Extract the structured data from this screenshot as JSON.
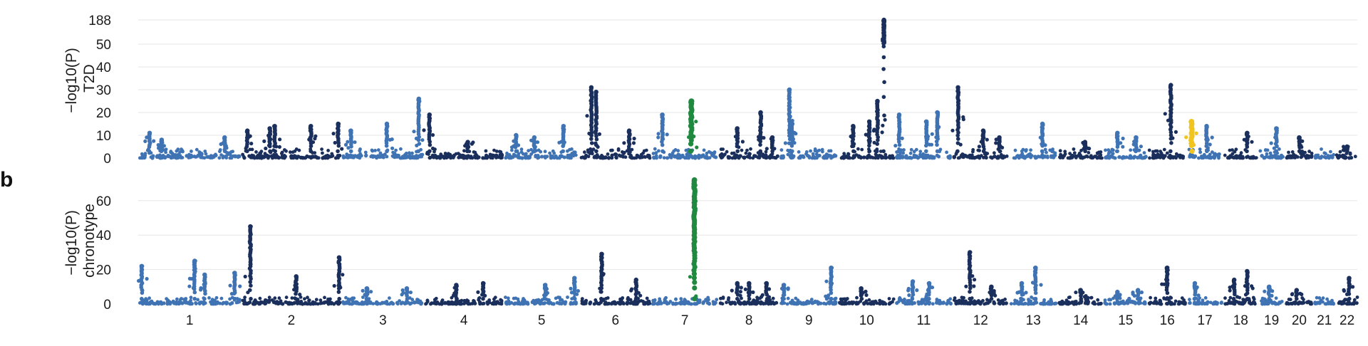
{
  "figure": {
    "panel_b_label": "b"
  },
  "colors": {
    "light": "#3f73b3",
    "dark": "#1a2f5c",
    "green": "#1f8a3f",
    "yellow": "#f2c41f",
    "grid": "#e6e6e6"
  },
  "chart_data": [
    {
      "type": "scatter",
      "plot": "manhattan",
      "ylabel_main": "−log10(P)",
      "ylabel_sub": "T2D",
      "yticks": [
        0,
        10,
        20,
        30,
        40,
        50,
        188
      ],
      "ytick_labels": [
        "0",
        "10",
        "20",
        "30",
        "40",
        "50",
        "188"
      ],
      "ylim": [
        0,
        60
      ],
      "y_axis_break": "values above 50 compressed; top tick labelled 188",
      "chromosomes": [
        "1",
        "2",
        "3",
        "4",
        "5",
        "6",
        "7",
        "8",
        "9",
        "10",
        "11",
        "12",
        "13",
        "14",
        "15",
        "16",
        "17",
        "18",
        "19",
        "20",
        "21",
        "22"
      ],
      "peaks": [
        {
          "chr": "1",
          "pos": 0.1,
          "p": 11
        },
        {
          "chr": "1",
          "pos": 0.22,
          "p": 8
        },
        {
          "chr": "1",
          "pos": 0.85,
          "p": 9
        },
        {
          "chr": "2",
          "pos": 0.05,
          "p": 12
        },
        {
          "chr": "2",
          "pos": 0.28,
          "p": 13
        },
        {
          "chr": "2",
          "pos": 0.33,
          "p": 14
        },
        {
          "chr": "2",
          "pos": 0.7,
          "p": 14
        },
        {
          "chr": "2",
          "pos": 0.98,
          "p": 15
        },
        {
          "chr": "3",
          "pos": 0.1,
          "p": 12
        },
        {
          "chr": "3",
          "pos": 0.55,
          "p": 15
        },
        {
          "chr": "3",
          "pos": 0.95,
          "p": 26
        },
        {
          "chr": "4",
          "pos": 0.05,
          "p": 19
        },
        {
          "chr": "4",
          "pos": 0.55,
          "p": 7
        },
        {
          "chr": "5",
          "pos": 0.15,
          "p": 10
        },
        {
          "chr": "5",
          "pos": 0.4,
          "p": 9
        },
        {
          "chr": "5",
          "pos": 0.8,
          "p": 14
        },
        {
          "chr": "6",
          "pos": 0.15,
          "p": 31
        },
        {
          "chr": "6",
          "pos": 0.22,
          "p": 29
        },
        {
          "chr": "6",
          "pos": 0.7,
          "p": 12
        },
        {
          "chr": "7",
          "pos": 0.15,
          "p": 19
        },
        {
          "chr": "7",
          "pos": 0.6,
          "p": 25,
          "highlight": "green"
        },
        {
          "chr": "8",
          "pos": 0.3,
          "p": 13
        },
        {
          "chr": "8",
          "pos": 0.7,
          "p": 20
        },
        {
          "chr": "8",
          "pos": 0.9,
          "p": 9
        },
        {
          "chr": "9",
          "pos": 0.15,
          "p": 30
        },
        {
          "chr": "9",
          "pos": 0.2,
          "p": 15
        },
        {
          "chr": "10",
          "pos": 0.25,
          "p": 14
        },
        {
          "chr": "10",
          "pos": 0.55,
          "p": 16
        },
        {
          "chr": "10",
          "pos": 0.7,
          "p": 25
        },
        {
          "chr": "10",
          "pos": 0.82,
          "p": 188
        },
        {
          "chr": "11",
          "pos": 0.05,
          "p": 19
        },
        {
          "chr": "11",
          "pos": 0.55,
          "p": 16
        },
        {
          "chr": "11",
          "pos": 0.75,
          "p": 20
        },
        {
          "chr": "12",
          "pos": 0.08,
          "p": 31
        },
        {
          "chr": "12",
          "pos": 0.55,
          "p": 12
        },
        {
          "chr": "12",
          "pos": 0.85,
          "p": 9
        },
        {
          "chr": "13",
          "pos": 0.7,
          "p": 15
        },
        {
          "chr": "14",
          "pos": 0.6,
          "p": 7
        },
        {
          "chr": "15",
          "pos": 0.3,
          "p": 11
        },
        {
          "chr": "15",
          "pos": 0.75,
          "p": 9
        },
        {
          "chr": "16",
          "pos": 0.6,
          "p": 32
        },
        {
          "chr": "17",
          "pos": 0.1,
          "p": 16,
          "highlight": "yellow"
        },
        {
          "chr": "17",
          "pos": 0.55,
          "p": 14
        },
        {
          "chr": "18",
          "pos": 0.7,
          "p": 11
        },
        {
          "chr": "19",
          "pos": 0.7,
          "p": 13
        },
        {
          "chr": "20",
          "pos": 0.5,
          "p": 9
        },
        {
          "chr": "22",
          "pos": 0.5,
          "p": 5
        }
      ]
    },
    {
      "type": "scatter",
      "plot": "manhattan",
      "ylabel_main": "−log10(P)",
      "ylabel_sub": "chronotype",
      "yticks": [
        0,
        20,
        40,
        60
      ],
      "ytick_labels": [
        "0",
        "20",
        "40",
        "60"
      ],
      "ylim": [
        0,
        75
      ],
      "xlabels": [
        "1",
        "2",
        "3",
        "4",
        "5",
        "6",
        "7",
        "8",
        "9",
        "10",
        "11",
        "12",
        "13",
        "14",
        "15",
        "16",
        "17",
        "18",
        "19",
        "20",
        "21",
        "22"
      ],
      "chromosomes": [
        "1",
        "2",
        "3",
        "4",
        "5",
        "6",
        "7",
        "8",
        "9",
        "10",
        "11",
        "12",
        "13",
        "14",
        "15",
        "16",
        "17",
        "18",
        "19",
        "20",
        "21",
        "22"
      ],
      "peaks": [
        {
          "chr": "1",
          "pos": 0.02,
          "p": 22
        },
        {
          "chr": "1",
          "pos": 0.55,
          "p": 25
        },
        {
          "chr": "1",
          "pos": 0.65,
          "p": 17
        },
        {
          "chr": "1",
          "pos": 0.95,
          "p": 18
        },
        {
          "chr": "2",
          "pos": 0.08,
          "p": 45
        },
        {
          "chr": "2",
          "pos": 0.55,
          "p": 16
        },
        {
          "chr": "2",
          "pos": 0.99,
          "p": 27
        },
        {
          "chr": "3",
          "pos": 0.3,
          "p": 9
        },
        {
          "chr": "3",
          "pos": 0.8,
          "p": 9
        },
        {
          "chr": "4",
          "pos": 0.4,
          "p": 11
        },
        {
          "chr": "4",
          "pos": 0.75,
          "p": 12
        },
        {
          "chr": "5",
          "pos": 0.55,
          "p": 11
        },
        {
          "chr": "5",
          "pos": 0.95,
          "p": 15
        },
        {
          "chr": "6",
          "pos": 0.3,
          "p": 29
        },
        {
          "chr": "6",
          "pos": 0.8,
          "p": 14
        },
        {
          "chr": "7",
          "pos": 0.65,
          "p": 72,
          "highlight": "green"
        },
        {
          "chr": "8",
          "pos": 0.3,
          "p": 12
        },
        {
          "chr": "8",
          "pos": 0.5,
          "p": 12
        },
        {
          "chr": "8",
          "pos": 0.8,
          "p": 12
        },
        {
          "chr": "9",
          "pos": 0.05,
          "p": 11
        },
        {
          "chr": "9",
          "pos": 0.9,
          "p": 21
        },
        {
          "chr": "10",
          "pos": 0.4,
          "p": 9
        },
        {
          "chr": "11",
          "pos": 0.3,
          "p": 13
        },
        {
          "chr": "11",
          "pos": 0.6,
          "p": 12
        },
        {
          "chr": "12",
          "pos": 0.3,
          "p": 30
        },
        {
          "chr": "12",
          "pos": 0.7,
          "p": 10
        },
        {
          "chr": "13",
          "pos": 0.25,
          "p": 12
        },
        {
          "chr": "13",
          "pos": 0.55,
          "p": 21
        },
        {
          "chr": "14",
          "pos": 0.5,
          "p": 8
        },
        {
          "chr": "15",
          "pos": 0.3,
          "p": 7
        },
        {
          "chr": "15",
          "pos": 0.8,
          "p": 8
        },
        {
          "chr": "16",
          "pos": 0.5,
          "p": 21
        },
        {
          "chr": "17",
          "pos": 0.2,
          "p": 12
        },
        {
          "chr": "18",
          "pos": 0.3,
          "p": 14
        },
        {
          "chr": "18",
          "pos": 0.7,
          "p": 19
        },
        {
          "chr": "19",
          "pos": 0.4,
          "p": 10
        },
        {
          "chr": "20",
          "pos": 0.4,
          "p": 8
        },
        {
          "chr": "22",
          "pos": 0.6,
          "p": 15
        }
      ]
    }
  ]
}
